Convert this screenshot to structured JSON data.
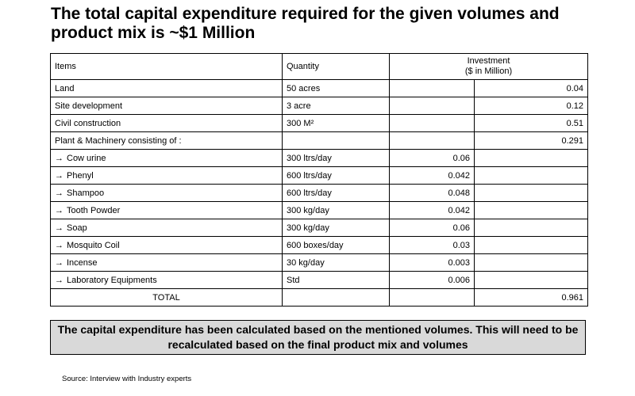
{
  "title": "The total capital expenditure required for the given volumes and product mix is ~$1 Million",
  "table": {
    "headers": {
      "items": "Items",
      "quantity": "Quantity",
      "investment_line1": "Investment",
      "investment_line2": "($ in Million)"
    },
    "rows": [
      {
        "item": "Land",
        "arrow": "",
        "quantity": "50 acres",
        "sub": "",
        "total": "0.04"
      },
      {
        "item": "Site development",
        "arrow": "",
        "quantity": "3 acre",
        "sub": "",
        "total": "0.12"
      },
      {
        "item": "Civil construction",
        "arrow": "",
        "quantity": "300 M²",
        "sub": "",
        "total": "0.51"
      },
      {
        "item": "Plant & Machinery consisting of :",
        "arrow": "",
        "quantity": "",
        "sub": "",
        "total": "0.291"
      },
      {
        "item": "Cow urine",
        "arrow": "→",
        "quantity": "300 ltrs/day",
        "sub": "0.06",
        "total": ""
      },
      {
        "item": "Phenyl",
        "arrow": "→",
        "quantity": "600 ltrs/day",
        "sub": "0.042",
        "total": ""
      },
      {
        "item": "Shampoo",
        "arrow": "→",
        "quantity": "600 ltrs/day",
        "sub": "0.048",
        "total": ""
      },
      {
        "item": "Tooth Powder",
        "arrow": "→",
        "quantity": "300 kg/day",
        "sub": "0.042",
        "total": ""
      },
      {
        "item": "Soap",
        "arrow": "→",
        "quantity": "300 kg/day",
        "sub": "0.06",
        "total": ""
      },
      {
        "item": "Mosquito Coil",
        "arrow": "→",
        "quantity": "600 boxes/day",
        "sub": "0.03",
        "total": ""
      },
      {
        "item": "Incense",
        "arrow": "→",
        "quantity": "30 kg/day",
        "sub": "0.003",
        "total": ""
      },
      {
        "item": "Laboratory Equipments",
        "arrow": "→",
        "quantity": "Std",
        "sub": "0.006",
        "total": ""
      }
    ],
    "total_row": {
      "label": "TOTAL",
      "value": "0.961"
    }
  },
  "note": "The capital expenditure has been calculated based on the mentioned volumes. This will need to be recalculated based on the final product mix and volumes",
  "source": "Source: Interview with Industry experts",
  "colors": {
    "note_background": "#d9d9d9",
    "border": "#000000"
  }
}
